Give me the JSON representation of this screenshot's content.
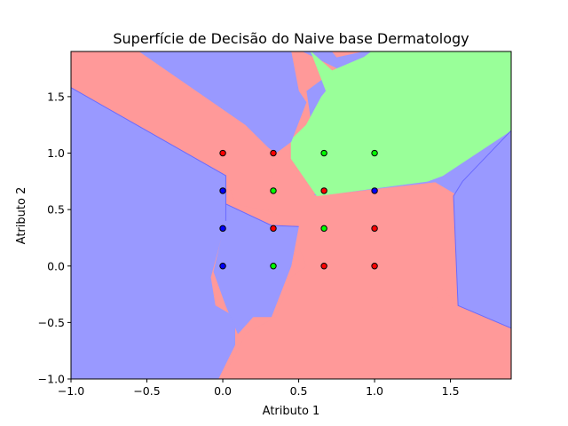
{
  "chart_data": {
    "type": "scatter",
    "title": "Superfície de Decisão do Naive base Dermatology",
    "xlabel": "Atributo 1",
    "ylabel": "Atributo 2",
    "xlim": [
      -1.0,
      1.9
    ],
    "ylim": [
      -1.0,
      1.9
    ],
    "xticks": [
      "−1.0",
      "−0.5",
      "0.0",
      "0.5",
      "1.0",
      "1.5"
    ],
    "yticks": [
      "−1.0",
      "−0.5",
      "0.0",
      "0.5",
      "1.0",
      "1.5"
    ],
    "xtick_values": [
      -1.0,
      -0.5,
      0.0,
      0.5,
      1.0,
      1.5
    ],
    "ytick_values": [
      -1.0,
      -0.5,
      0.0,
      0.5,
      1.0,
      1.5
    ],
    "grid": false,
    "background_regions": {
      "colors": {
        "red": "#ff9999",
        "green": "#99ff99",
        "blue": "#9999ff"
      },
      "polygons": [
        {
          "class": "blue",
          "points": [
            [
              -1.0,
              1.9
            ],
            [
              1.9,
              1.9
            ],
            [
              1.9,
              -1.0
            ],
            [
              -1.0,
              -1.0
            ]
          ]
        },
        {
          "class": "red",
          "points": [
            [
              -1.0,
              1.9
            ],
            [
              0.52,
              1.9
            ],
            [
              0.75,
              1.75
            ],
            [
              0.55,
              1.55
            ],
            [
              0.6,
              1.1
            ],
            [
              0.45,
              1.05
            ],
            [
              0.5,
              0.68
            ],
            [
              0.62,
              0.62
            ],
            [
              1.4,
              0.74
            ],
            [
              1.55,
              0.62
            ],
            [
              1.55,
              -0.4
            ],
            [
              1.9,
              -0.55
            ],
            [
              1.9,
              -1.0
            ],
            [
              0.0,
              -1.0
            ],
            [
              0.15,
              -0.6
            ],
            [
              0.35,
              -0.45
            ],
            [
              0.45,
              -0.1
            ],
            [
              0.55,
              0.0
            ],
            [
              0.42,
              0.45
            ],
            [
              0.25,
              0.5
            ],
            [
              0.08,
              0.55
            ],
            [
              0.02,
              0.8
            ],
            [
              -1.0,
              1.58
            ]
          ]
        },
        {
          "class": "red",
          "points": [
            [
              -1.0,
              1.58
            ],
            [
              0.02,
              0.8
            ],
            [
              0.08,
              0.55
            ],
            [
              0.25,
              0.5
            ],
            [
              0.42,
              0.45
            ],
            [
              0.55,
              0.0
            ],
            [
              0.45,
              -0.1
            ],
            [
              0.35,
              -0.45
            ],
            [
              0.15,
              -0.6
            ],
            [
              0.0,
              -1.0
            ],
            [
              -1.0,
              -1.0
            ]
          ]
        },
        {
          "class": "blue",
          "points": [
            [
              -1.0,
              1.58
            ],
            [
              0.02,
              0.8
            ],
            [
              0.02,
              0.4
            ],
            [
              -0.02,
              0.2
            ],
            [
              -0.08,
              -0.1
            ],
            [
              -0.05,
              -0.35
            ],
            [
              0.08,
              -0.45
            ],
            [
              0.08,
              -0.7
            ],
            [
              -0.03,
              -1.0
            ],
            [
              -1.0,
              -1.0
            ]
          ]
        },
        {
          "class": "blue",
          "points": [
            [
              0.02,
              0.55
            ],
            [
              0.32,
              0.36
            ],
            [
              0.5,
              0.35
            ],
            [
              0.45,
              0.0
            ],
            [
              0.32,
              -0.45
            ],
            [
              0.2,
              -0.45
            ],
            [
              0.1,
              -0.6
            ],
            [
              0.02,
              -0.35
            ],
            [
              -0.06,
              -0.05
            ],
            [
              0.0,
              0.3
            ]
          ]
        },
        {
          "class": "red",
          "points": [
            [
              0.3,
              0.5
            ],
            [
              0.42,
              0.42
            ],
            [
              0.7,
              0.75
            ],
            [
              0.6,
              1.1
            ],
            [
              0.45,
              1.05
            ],
            [
              0.35,
              0.95
            ],
            [
              0.3,
              0.7
            ]
          ]
        },
        {
          "class": "green",
          "points": [
            [
              0.58,
              1.9
            ],
            [
              0.72,
              1.73
            ],
            [
              0.93,
              1.85
            ],
            [
              0.98,
              1.9
            ],
            [
              1.9,
              1.9
            ],
            [
              1.9,
              1.2
            ],
            [
              1.45,
              0.8
            ],
            [
              1.35,
              0.75
            ],
            [
              0.62,
              0.62
            ],
            [
              0.45,
              0.95
            ],
            [
              0.45,
              1.12
            ],
            [
              0.55,
              1.25
            ],
            [
              0.65,
              1.5
            ],
            [
              0.68,
              1.55
            ]
          ]
        },
        {
          "class": "red",
          "points": [
            [
              0.72,
              1.9
            ],
            [
              0.75,
              1.85
            ],
            [
              0.92,
              1.9
            ]
          ]
        },
        {
          "class": "blue",
          "points": [
            [
              -0.55,
              1.9
            ],
            [
              0.45,
              1.9
            ],
            [
              0.5,
              1.55
            ],
            [
              0.55,
              1.45
            ],
            [
              0.45,
              1.1
            ],
            [
              0.35,
              1.0
            ],
            [
              0.3,
              1.05
            ],
            [
              0.15,
              1.25
            ]
          ]
        },
        {
          "class": "blue",
          "points": [
            [
              1.9,
              1.2
            ],
            [
              1.9,
              -0.55
            ],
            [
              1.55,
              -0.35
            ],
            [
              1.52,
              0.62
            ],
            [
              1.58,
              0.75
            ]
          ]
        },
        {
          "class": "red",
          "points": [
            [
              1.9,
              -1.0
            ],
            [
              1.9,
              -0.55
            ],
            [
              1.55,
              -0.35
            ],
            [
              1.45,
              -0.2
            ],
            [
              1.35,
              -0.45
            ],
            [
              1.35,
              -1.0
            ]
          ]
        }
      ]
    },
    "series": [
      {
        "points": [
          [
            0.0,
            1.0
          ],
          [
            0.333,
            1.0
          ],
          [
            0.333,
            0.333
          ],
          [
            0.667,
            0.667
          ],
          [
            0.667,
            0.0
          ],
          [
            1.0,
            0.333
          ],
          [
            1.0,
            0.0
          ]
        ],
        "color": "#ff0000",
        "class": "red"
      },
      {
        "points": [
          [
            0.667,
            1.0
          ],
          [
            1.0,
            1.0
          ],
          [
            0.333,
            0.667
          ],
          [
            0.667,
            0.333
          ],
          [
            0.333,
            0.0
          ]
        ],
        "color": "#00ff00",
        "class": "green"
      },
      {
        "points": [
          [
            0.0,
            0.667
          ],
          [
            1.0,
            0.667
          ],
          [
            0.0,
            0.333
          ],
          [
            0.0,
            0.0
          ]
        ],
        "color": "#0000ff",
        "class": "blue"
      }
    ]
  }
}
